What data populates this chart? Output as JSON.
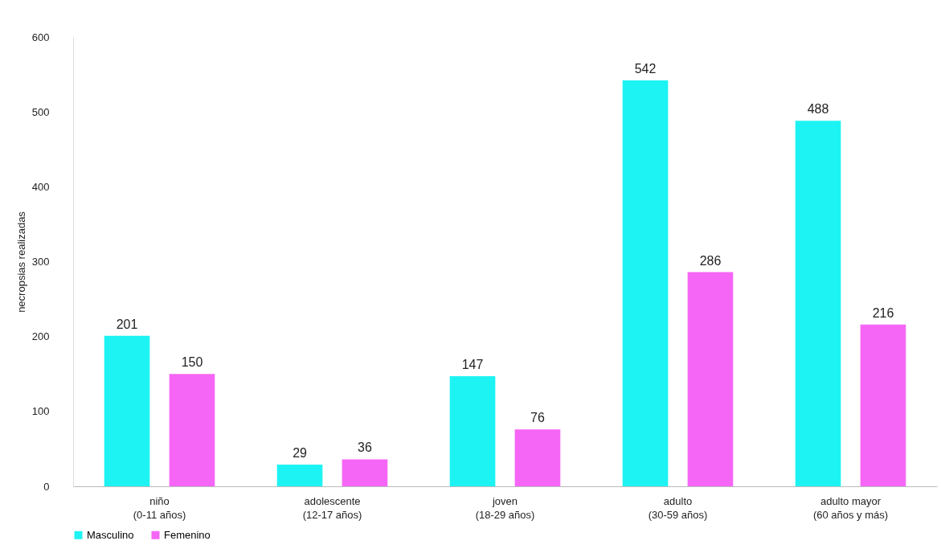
{
  "chart_data": {
    "type": "bar",
    "ylabel": "necropsias realizadas",
    "categories": [
      "niño\n(0-11 años)",
      "adolescente\n(12-17 años)",
      "joven\n(18-29 años)",
      "adulto\n(30-59 años)",
      "adulto mayor\n(60 años y más)"
    ],
    "series": [
      {
        "name": "Masculino",
        "color": "#1ef3f3",
        "values": [
          201,
          29,
          147,
          542,
          488
        ]
      },
      {
        "name": "Femenino",
        "color": "#f666f6",
        "values": [
          150,
          36,
          76,
          286,
          216
        ]
      }
    ],
    "ylim": [
      0,
      600
    ],
    "yticks": [
      0,
      100,
      200,
      300,
      400,
      500,
      600
    ],
    "grid": false,
    "legend": "bottom",
    "data_labels": true
  }
}
